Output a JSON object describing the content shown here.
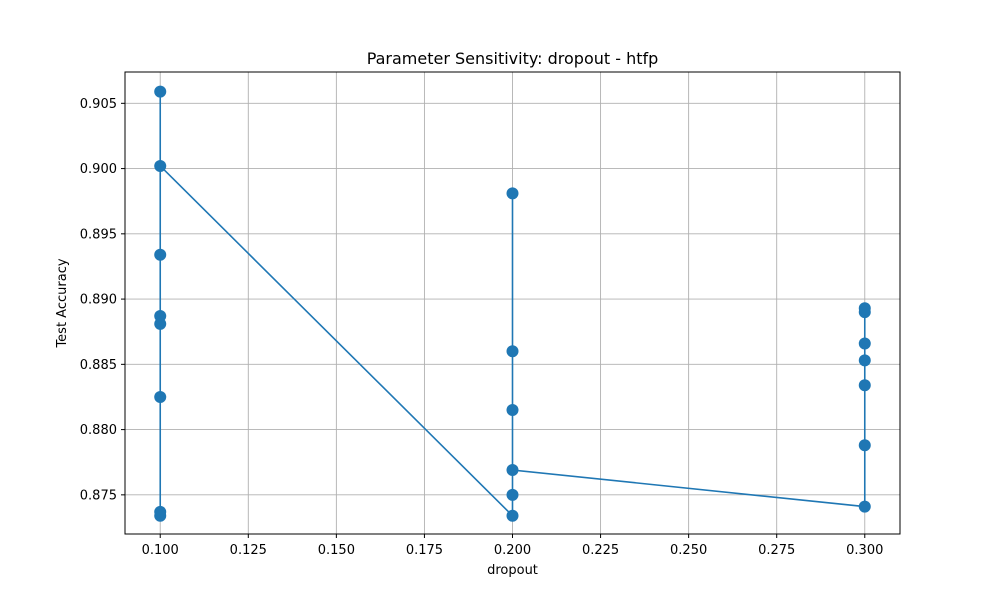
{
  "chart_data": {
    "type": "line",
    "title": "Parameter Sensitivity: dropout - htfp",
    "xlabel": "dropout",
    "ylabel": "Test Accuracy",
    "xlim": [
      0.09,
      0.31
    ],
    "ylim": [
      0.872,
      0.9074
    ],
    "xticks": [
      "0.100",
      "0.125",
      "0.150",
      "0.175",
      "0.200",
      "0.225",
      "0.250",
      "0.275",
      "0.300"
    ],
    "yticks": [
      "0.875",
      "0.880",
      "0.885",
      "0.890",
      "0.895",
      "0.900",
      "0.905"
    ],
    "grid": true,
    "color": "#1f77b4",
    "line_order_points": [
      {
        "x": 0.1,
        "y": 0.8734
      },
      {
        "x": 0.1,
        "y": 0.8737
      },
      {
        "x": 0.1,
        "y": 0.8825
      },
      {
        "x": 0.1,
        "y": 0.8881
      },
      {
        "x": 0.1,
        "y": 0.8887
      },
      {
        "x": 0.1,
        "y": 0.8934
      },
      {
        "x": 0.1,
        "y": 0.9059
      },
      {
        "x": 0.1,
        "y": 0.9002
      },
      {
        "x": 0.2,
        "y": 0.8734
      },
      {
        "x": 0.2,
        "y": 0.875
      },
      {
        "x": 0.2,
        "y": 0.8815
      },
      {
        "x": 0.2,
        "y": 0.886
      },
      {
        "x": 0.2,
        "y": 0.8981
      },
      {
        "x": 0.2,
        "y": 0.8769
      },
      {
        "x": 0.3,
        "y": 0.8741
      },
      {
        "x": 0.3,
        "y": 0.8788
      },
      {
        "x": 0.3,
        "y": 0.8853
      },
      {
        "x": 0.3,
        "y": 0.8866
      },
      {
        "x": 0.3,
        "y": 0.889
      },
      {
        "x": 0.3,
        "y": 0.8893
      },
      {
        "x": 0.3,
        "y": 0.8834
      }
    ]
  }
}
